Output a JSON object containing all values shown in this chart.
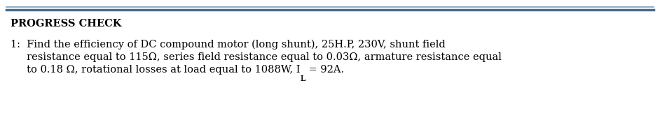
{
  "title": "PROGRESS CHECK",
  "line1": "1:  Find the efficiency of DC compound motor (long shunt), 25H.P, 230V, shunt field",
  "line2": "     resistance equal to 115Ω, series field resistance equal to 0.03Ω, armature resistance equal",
  "line3_a": "     to 0.18 Ω, rotational losses at load equal to 1088W, I",
  "line3_sub": "L",
  "line3_b": " = 92A.",
  "bar_color_top": "#5B7FA6",
  "bar_color_bot": "#4A6B8A",
  "bg_color": "#ffffff",
  "text_color": "#000000",
  "title_fontsize": 10.5,
  "body_fontsize": 10.5
}
